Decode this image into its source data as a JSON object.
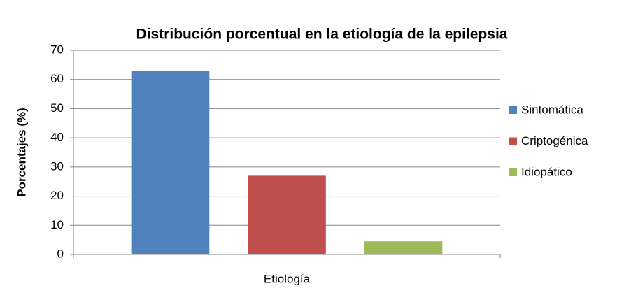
{
  "chart_data": {
    "type": "bar",
    "title": "Distribución porcentual en la etiología de la epilepsia",
    "y_label": "Porcentajes (%)",
    "categories": [
      "Etiología"
    ],
    "series": [
      {
        "name": "Sintomática",
        "color": "#4f81bd",
        "values": [
          63
        ]
      },
      {
        "name": "Criptogénica",
        "color": "#c0504d",
        "values": [
          27
        ]
      },
      {
        "name": "Idiopático",
        "color": "#9bbb59",
        "values": [
          4.5
        ]
      }
    ],
    "ylim": [
      0,
      70
    ],
    "yticks": [
      0,
      10,
      20,
      30,
      40,
      50,
      60,
      70
    ],
    "grid": true,
    "legend": "right"
  }
}
